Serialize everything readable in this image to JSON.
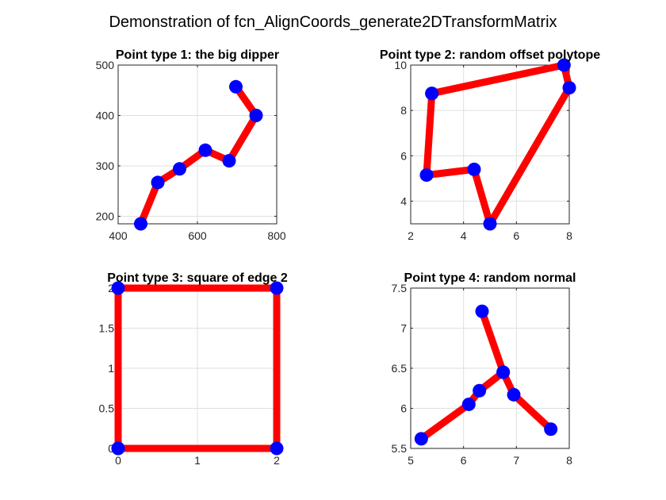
{
  "figure": {
    "title": "Demonstration of fcn_AlignCoords_generate2DTransformMatrix"
  },
  "colors": {
    "line": "#ff0000",
    "marker": "#0000ff",
    "axis": "#262626",
    "grid": "#dfdfdf"
  },
  "chart_data": [
    {
      "type": "line",
      "title": "Point type 1: the big dipper",
      "xlim": [
        400,
        800
      ],
      "ylim": [
        185,
        500
      ],
      "xticks": [
        400,
        600,
        800
      ],
      "yticks": [
        200,
        300,
        400,
        500
      ],
      "grid": true,
      "x": [
        457,
        500,
        555,
        620,
        680,
        748,
        697
      ],
      "y": [
        185,
        267,
        294,
        331,
        310,
        400,
        457
      ]
    },
    {
      "type": "line",
      "title": "Point type 2: random offset polytope",
      "xlim": [
        2,
        8
      ],
      "ylim": [
        3,
        10
      ],
      "xticks": [
        2,
        4,
        6,
        8
      ],
      "yticks": [
        4,
        6,
        8,
        10
      ],
      "grid": true,
      "x": [
        2.8,
        7.8,
        8.0,
        5.0,
        4.4,
        2.6,
        2.8
      ],
      "y": [
        8.75,
        10.0,
        9.0,
        3.0,
        5.4,
        5.15,
        8.75
      ]
    },
    {
      "type": "line",
      "title": "Point type 3: square of edge 2",
      "xlim": [
        0,
        2
      ],
      "ylim": [
        0,
        2
      ],
      "xticks": [
        0,
        1,
        2
      ],
      "yticks": [
        0,
        0.5,
        1,
        1.5,
        2
      ],
      "grid": true,
      "x": [
        0,
        2,
        2,
        0,
        0
      ],
      "y": [
        0,
        0,
        2,
        2,
        0
      ]
    },
    {
      "type": "line",
      "title": "Point type 4: random normal",
      "xlim": [
        5,
        8
      ],
      "ylim": [
        5.5,
        7.5
      ],
      "xticks": [
        5,
        6,
        7,
        8
      ],
      "yticks": [
        5.5,
        6,
        6.5,
        7,
        7.5
      ],
      "grid": true,
      "x": [
        5.2,
        6.1,
        6.3,
        6.75,
        6.35,
        6.75,
        6.95,
        7.65
      ],
      "y": [
        5.62,
        6.05,
        6.22,
        6.45,
        7.21,
        6.45,
        6.17,
        5.74
      ]
    }
  ]
}
